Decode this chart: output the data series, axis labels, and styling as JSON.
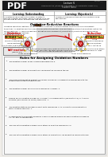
{
  "bg_color": "#f0ede8",
  "page_bg": "#ffffff",
  "header_bg": "#1a1a1a",
  "pdf_label": "PDF",
  "title_line1": "Lecture 6",
  "title_line2": "Guided Notes (Student) Directions (AP Chemistry Topic 4.2)",
  "title_line3": "Student Notes",
  "table_header_left": "Learning: Understanding",
  "table_header_right": "Learning: Objective(s)",
  "table_left": "A substance can change into another substance\nthrough different processes, and the change itself can\nbe classified by the set of processes that produced it.",
  "table_right": "Represent a balanced redox reaction equation using\nhalf-reactions.",
  "section1_title": "Oxidation-Reduction Reactions",
  "oxidation_label": "Oxidation",
  "oxidation_text1": "Oxidation occurs when an",
  "oxidation_text2": "atom undergoes an",
  "oxidation_highlight": "INCREASE (inc)",
  "oxidation_text3": "oxidation number by",
  "oxidation_text4": "losing electrons.",
  "oxidation_example": "Cu(s)+2AgNO₃(aq) → Cu(NO₃)₂+2Ag",
  "reduction_label": "Reduction",
  "reduction_text1": "Reduction occurs when an",
  "reduction_text2": "atom undergoes a",
  "reduction_highlight": "DECREASE (dec)",
  "reduction_text3": "oxidation number by",
  "reduction_text4": "gaining electrons.",
  "reduction_example": "1ox + 2Ag⁺ → 2Ag",
  "atom_left_label": "Atom Loses Electrons",
  "atom_right_label": "Atom Gains Electrons",
  "half_reaction_label": "Half-reactions",
  "half_reaction_subtext": "(see pg ##)",
  "half_reaction_note": "Oxidation numbers are a method of tracking the \"ownership\" of all electrons by atoms\nand they represent the total number of electrons that an atom either gains or loses\nin order to form a chemical bond with another atom.",
  "rules_title": "Rules for Assigning Oxidation Numbers",
  "rules": [
    "The oxidation number of any uncombined element is 0.",
    "The oxidation number of a monatomic ion equals the charge on the ion.",
    "The more electronegative element in a binary compound is assigned the number equal to the\nchange it would have if it were an ion.",
    "The oxidation number of fluorine in a compound is always -1.",
    "Oxygen has an oxidation number of -2 unless it is combined with F (where it is +2), or it is in a\nperoxide (such as H₂O₂ or Na₂O₂), where it is -1.",
    "The oxidation state of hydrogen in most of its compounds is +1 unless it is combined with a\nmetal, in which case it is -1.",
    "In compounds, the elements of groups 1 and 2 as well as aluminum have oxidation numbers of\n+1, +2, and +3 respectively.",
    "The sum of the oxidation numbers of all atoms in a neutral compound is 0.",
    "The sum of the oxidation numbers of all atoms in a polyatomic ion equals the charge of the ion."
  ],
  "atom_nucleus_color": "#cc2222",
  "atom_orbit_color": "#999999",
  "electron_color": "#ffee00",
  "arrow_color": "#cc0000",
  "highlight_yellow": "#ffee44",
  "highlight_red_border": "#cc0000",
  "ox_box_bg": "#e8e8e8",
  "red_box_bg": "#e8e8e8",
  "half_box_bg": "#e8e8e8",
  "rules_bg": "#f8f8f8",
  "body_text_color": "#111111",
  "redox_highlight": "#ff4444"
}
